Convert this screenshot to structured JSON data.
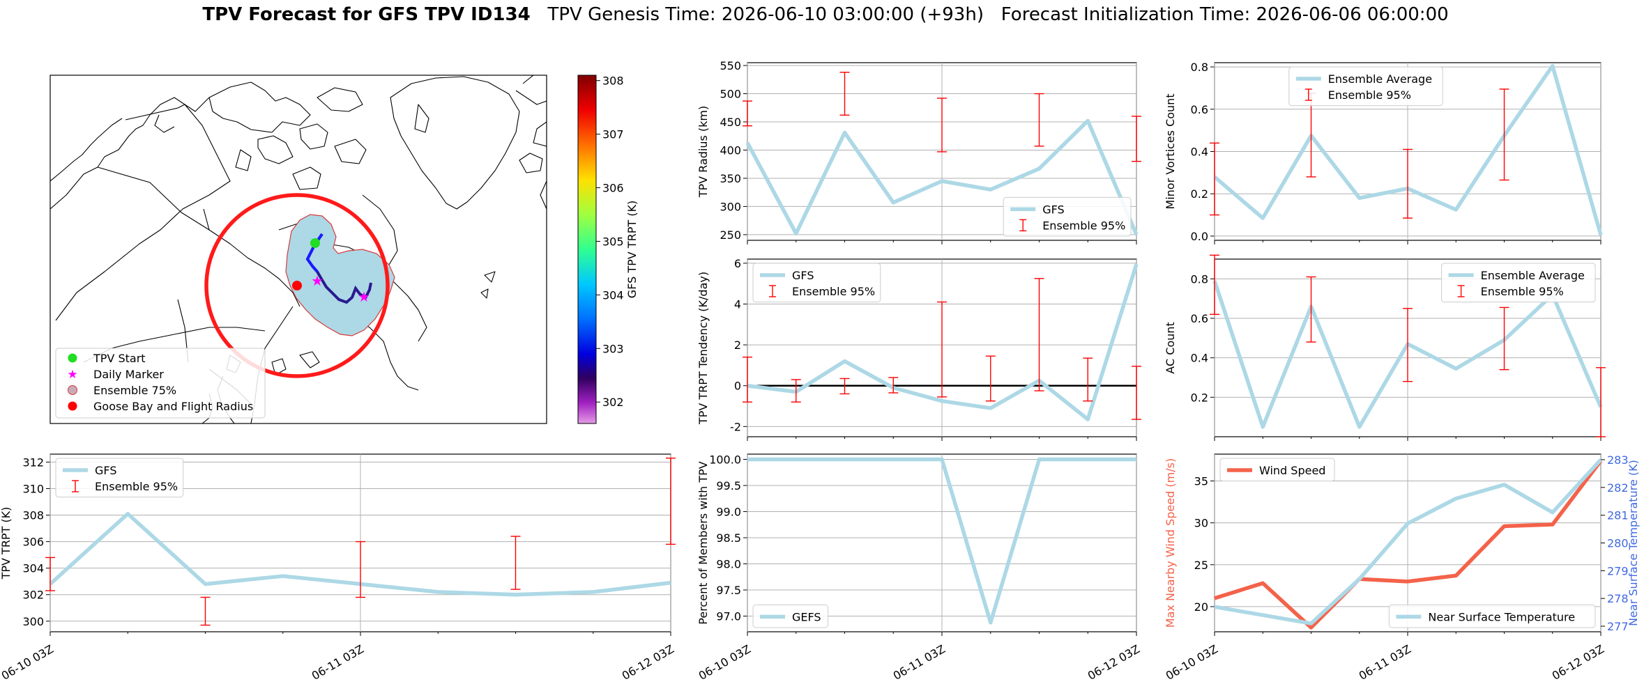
{
  "header": {
    "title_bold": "TPV Forecast for GFS TPV ID134",
    "title_rest": "TPV Genesis Time: 2026-06-10 03:00:00 (+93h)   Forecast Initialization Time: 2026-06-06 06:00:00"
  },
  "colors": {
    "gfs_line": "#add8e6",
    "ensemble_err": "#ff0000",
    "wind_line": "#f4624a",
    "temp_axis": "#4169e1",
    "land_line": "#000000",
    "circle": "#ff0000",
    "ensemble_area": "#add8e6"
  },
  "map": {
    "legend": [
      {
        "label": "TPV Start",
        "marker": "green-dot"
      },
      {
        "label": "Daily Marker",
        "marker": "magenta-star"
      },
      {
        "label": "Ensemble 75%",
        "marker": "lightblue-patch"
      },
      {
        "label": "Goose Bay and Flight Radius",
        "marker": "red-dot"
      }
    ],
    "colorbar": {
      "label": "GFS TPV TRPT (K)",
      "ticks": [
        "308",
        "307",
        "306",
        "305",
        "304",
        "303",
        "302"
      ],
      "vmin": 301.6,
      "vmax": 308.1
    }
  },
  "x_ticks": [
    "06-10 03Z",
    "06-11 03Z",
    "06-12 03Z"
  ],
  "chart_data": [
    {
      "id": "radius",
      "type": "line",
      "ylabel": "TPV Radius (km)",
      "ylim": [
        240,
        555
      ],
      "yticks": [
        250,
        300,
        350,
        400,
        450,
        500,
        550
      ],
      "legend": [
        "GFS",
        "Ensemble 95%"
      ],
      "legend_loc": "lower-right",
      "xlim": [
        0,
        8
      ],
      "x": [
        0,
        1,
        2,
        3,
        4,
        5,
        6,
        7,
        8
      ],
      "series": [
        {
          "name": "GFS",
          "values": [
            413,
            252,
            431,
            307,
            345,
            330,
            367,
            452,
            250
          ]
        }
      ],
      "errorbars": [
        {
          "x": 0,
          "low": 443,
          "high": 487
        },
        {
          "x": 2,
          "low": 462,
          "high": 538
        },
        {
          "x": 4,
          "low": 397,
          "high": 492
        },
        {
          "x": 6,
          "low": 407,
          "high": 500
        },
        {
          "x": 8,
          "low": 380,
          "high": 460
        }
      ]
    },
    {
      "id": "minor",
      "type": "line",
      "ylabel": "Minor Vortices Count",
      "ylim": [
        -0.02,
        0.82
      ],
      "yticks": [
        0.0,
        0.2,
        0.4,
        0.6,
        0.8
      ],
      "legend": [
        "Ensemble Average",
        "Ensemble 95%"
      ],
      "legend_loc": "top-center",
      "xlim": [
        0,
        8
      ],
      "x": [
        0,
        1,
        2,
        3,
        4,
        5,
        6,
        7,
        8
      ],
      "series": [
        {
          "name": "Ensemble Average",
          "values": [
            0.28,
            0.085,
            0.475,
            0.18,
            0.225,
            0.125,
            0.475,
            0.805,
            0.005
          ]
        }
      ],
      "errorbars": [
        {
          "x": 0,
          "low": 0.1,
          "high": 0.44
        },
        {
          "x": 2,
          "low": 0.28,
          "high": 0.675
        },
        {
          "x": 4,
          "low": 0.085,
          "high": 0.41
        },
        {
          "x": 6,
          "low": 0.265,
          "high": 0.695
        }
      ]
    },
    {
      "id": "tendency",
      "type": "line",
      "ylabel": "TPV TRPT Tendency (K/day)",
      "ylim": [
        -2.5,
        6.2
      ],
      "yticks": [
        -2,
        0,
        2,
        4,
        6
      ],
      "legend": [
        "GFS",
        "Ensemble 95%"
      ],
      "legend_loc": "top-left",
      "zero_line": true,
      "xlim": [
        0,
        8
      ],
      "x": [
        0,
        1,
        2,
        3,
        4,
        5,
        6,
        7,
        8
      ],
      "series": [
        {
          "name": "GFS",
          "values": [
            0.0,
            -0.3,
            1.2,
            -0.1,
            -0.75,
            -1.1,
            0.25,
            -1.65,
            5.95
          ]
        }
      ],
      "errorbars": [
        {
          "x": 0,
          "low": -0.8,
          "high": 1.4
        },
        {
          "x": 1,
          "low": -0.8,
          "high": 0.3
        },
        {
          "x": 2,
          "low": -0.4,
          "high": 0.35
        },
        {
          "x": 3,
          "low": -0.35,
          "high": 0.4
        },
        {
          "x": 4,
          "low": -0.55,
          "high": 4.1
        },
        {
          "x": 5,
          "low": -0.75,
          "high": 1.45
        },
        {
          "x": 6,
          "low": -0.25,
          "high": 5.25
        },
        {
          "x": 7,
          "low": -0.75,
          "high": 1.35
        },
        {
          "x": 8,
          "low": -1.65,
          "high": 0.95
        }
      ]
    },
    {
      "id": "ac",
      "type": "line",
      "ylabel": "AC Count",
      "ylim": [
        0.0,
        0.9
      ],
      "yticks": [
        0.2,
        0.4,
        0.6,
        0.8
      ],
      "legend": [
        "Ensemble Average",
        "Ensemble 95%"
      ],
      "legend_loc": "top-right",
      "xlim": [
        0,
        8
      ],
      "x": [
        0,
        1,
        2,
        3,
        4,
        5,
        6,
        7,
        8
      ],
      "series": [
        {
          "name": "Ensemble Average",
          "values": [
            0.79,
            0.05,
            0.66,
            0.05,
            0.47,
            0.345,
            0.49,
            0.72,
            0.15
          ]
        }
      ],
      "errorbars": [
        {
          "x": 0,
          "low": 0.62,
          "high": 0.92
        },
        {
          "x": 2,
          "low": 0.48,
          "high": 0.81
        },
        {
          "x": 4,
          "low": 0.28,
          "high": 0.65
        },
        {
          "x": 6,
          "low": 0.34,
          "high": 0.655
        },
        {
          "x": 8,
          "low": 0.0,
          "high": 0.35
        }
      ]
    },
    {
      "id": "trpt",
      "type": "line",
      "ylabel": "TPV TRPT (K)",
      "ylim": [
        299.2,
        312.6
      ],
      "yticks": [
        300,
        302,
        304,
        306,
        308,
        310,
        312
      ],
      "legend": [
        "GFS",
        "Ensemble 95%"
      ],
      "legend_loc": "top-left",
      "xlim": [
        0,
        8
      ],
      "x": [
        0,
        1,
        2,
        3,
        4,
        5,
        6,
        7,
        8
      ],
      "series": [
        {
          "name": "GFS",
          "values": [
            302.8,
            308.1,
            302.8,
            303.4,
            302.8,
            302.2,
            302.0,
            302.2,
            302.9
          ]
        }
      ],
      "errorbars": [
        {
          "x": 0,
          "low": 302.3,
          "high": 304.8
        },
        {
          "x": 2,
          "low": 299.7,
          "high": 301.8
        },
        {
          "x": 4,
          "low": 301.8,
          "high": 306.0
        },
        {
          "x": 6,
          "low": 302.4,
          "high": 306.4
        },
        {
          "x": 8,
          "low": 305.8,
          "high": 312.3
        }
      ]
    },
    {
      "id": "percent",
      "type": "line",
      "ylabel": "Percent of Members with TPV",
      "ylim": [
        96.7,
        100.1
      ],
      "yticks": [
        97.0,
        97.5,
        98.0,
        98.5,
        99.0,
        99.5,
        100.0
      ],
      "legend": [
        "GEFS"
      ],
      "legend_loc": "lower-left",
      "xlim": [
        0,
        8
      ],
      "x": [
        0,
        1,
        2,
        3,
        4,
        5,
        6,
        7,
        8
      ],
      "series": [
        {
          "name": "GEFS",
          "values": [
            100,
            100,
            100,
            100,
            100,
            96.875,
            100,
            100,
            100
          ]
        }
      ],
      "errorbars": []
    },
    {
      "id": "wind",
      "type": "line",
      "ylabel": "Max Nearby Wind Speed (m/s)",
      "ylabel_right": "Near Surface Temperature (K)",
      "ylim": [
        17.0,
        38.2
      ],
      "yticks": [
        20,
        25,
        30,
        35
      ],
      "ylim_right": [
        276.8,
        283.2
      ],
      "yticks_right": [
        277,
        278,
        279,
        280,
        281,
        282,
        283
      ],
      "legend": [
        "Wind Speed"
      ],
      "legend_right": [
        "Near Surface Temperature"
      ],
      "legend_loc": "top-left",
      "legend_right_loc": "lower-right",
      "xlim": [
        0,
        8
      ],
      "x": [
        0,
        1,
        2,
        3,
        4,
        5,
        6,
        7,
        8
      ],
      "series": [
        {
          "name": "Wind Speed",
          "axis": "left",
          "values": [
            21.0,
            22.8,
            17.5,
            23.3,
            23.0,
            23.7,
            29.6,
            29.8,
            37.4
          ]
        },
        {
          "name": "Near Surface Temperature",
          "axis": "right",
          "values": [
            277.7,
            277.4,
            277.1,
            278.7,
            280.7,
            281.6,
            282.1,
            281.1,
            283.0
          ]
        }
      ],
      "errorbars": []
    }
  ]
}
